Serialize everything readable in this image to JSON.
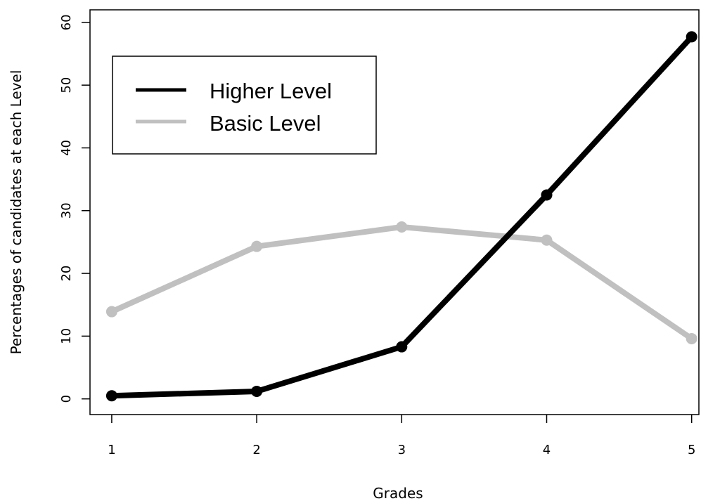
{
  "chart_data": {
    "type": "line",
    "title": "",
    "xlabel": "Grades",
    "ylabel": "Percentages of candidates at each Level",
    "x": [
      1,
      2,
      3,
      4,
      5
    ],
    "xticks": [
      "1",
      "2",
      "3",
      "4",
      "5"
    ],
    "yticks": [
      "0",
      "10",
      "20",
      "30",
      "40",
      "50",
      "60"
    ],
    "xlim": [
      0.85,
      5.05
    ],
    "ylim": [
      -2.5,
      62
    ],
    "legend_position": "top-left",
    "grid": false,
    "series": [
      {
        "name": "Higher Level",
        "color": "#000000",
        "values": [
          0.5,
          1.2,
          8.3,
          32.5,
          57.7
        ]
      },
      {
        "name": "Basic Level",
        "color": "#c0c0c0",
        "values": [
          13.9,
          24.3,
          27.4,
          25.3,
          9.6
        ]
      }
    ]
  }
}
